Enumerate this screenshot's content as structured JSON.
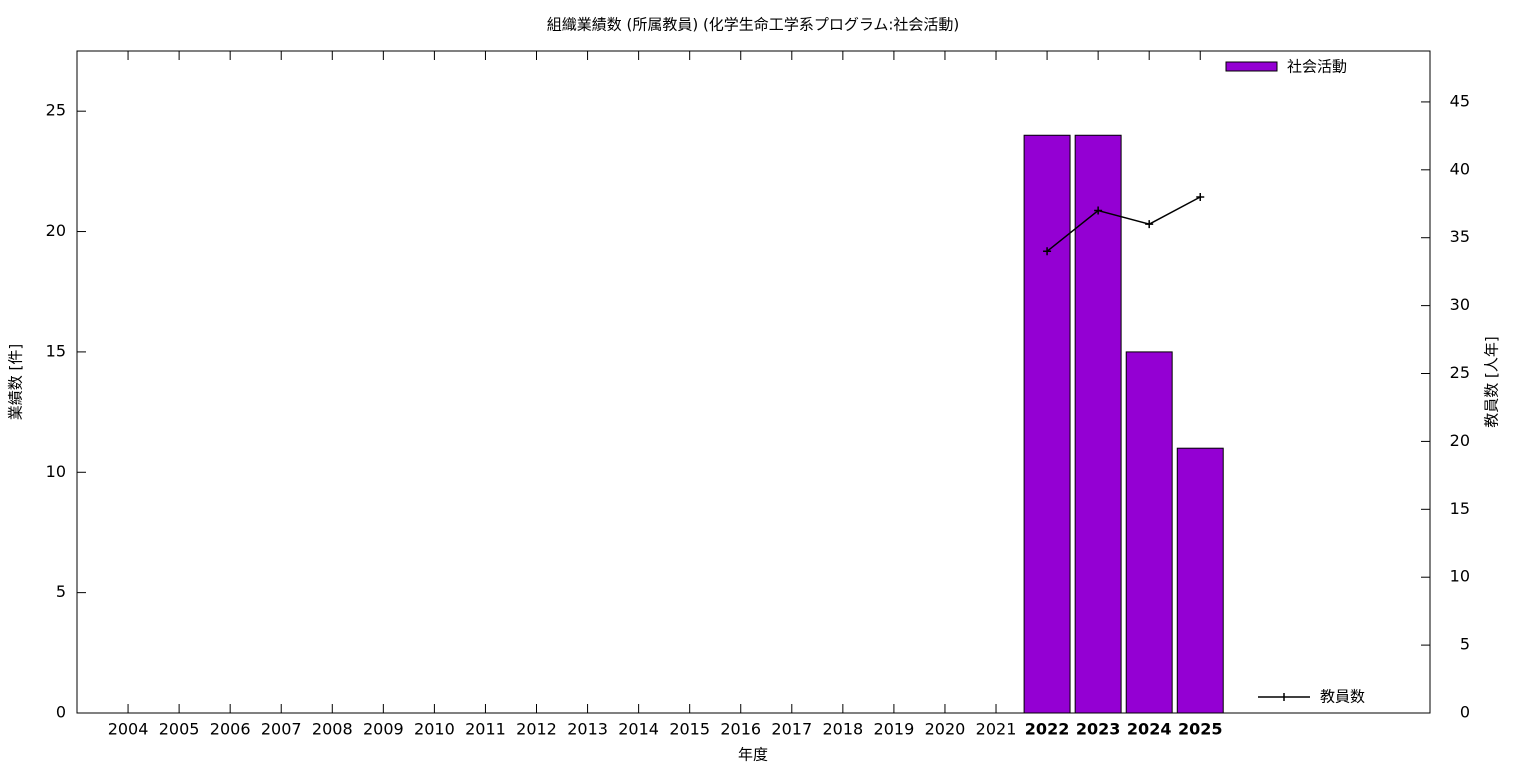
{
  "chart_data": {
    "type": "bar",
    "title": "組織業績数 (所属教員) (化学生命工学系プログラム:社会活動)",
    "x_label": "年度",
    "y_label": "業績数 [件]",
    "y2_label": "教員数 [人年]",
    "categories": [
      "2004",
      "2005",
      "2006",
      "2007",
      "2008",
      "2009",
      "2010",
      "2011",
      "2012",
      "2013",
      "2014",
      "2015",
      "2016",
      "2017",
      "2018",
      "2019",
      "2020",
      "2021",
      "2022",
      "2023",
      "2024",
      "2025"
    ],
    "series": [
      {
        "name": "社会活動",
        "type": "bar",
        "color": "#9400d3",
        "values": [
          null,
          null,
          null,
          null,
          null,
          null,
          null,
          null,
          null,
          null,
          null,
          null,
          null,
          null,
          null,
          null,
          null,
          null,
          24,
          24,
          15,
          11
        ]
      },
      {
        "name": "教員数",
        "type": "line",
        "axis": "y2",
        "color": "#000000",
        "values": [
          null,
          null,
          null,
          null,
          null,
          null,
          null,
          null,
          null,
          null,
          null,
          null,
          null,
          null,
          null,
          null,
          null,
          null,
          34,
          37,
          36,
          38
        ]
      }
    ],
    "ylim": [
      0,
      27.5
    ],
    "yticks": [
      0,
      5,
      10,
      15,
      20,
      25
    ],
    "y2lim": [
      0,
      48.75
    ],
    "y2ticks": [
      0,
      5,
      10,
      15,
      20,
      25,
      30,
      35,
      40,
      45
    ]
  }
}
